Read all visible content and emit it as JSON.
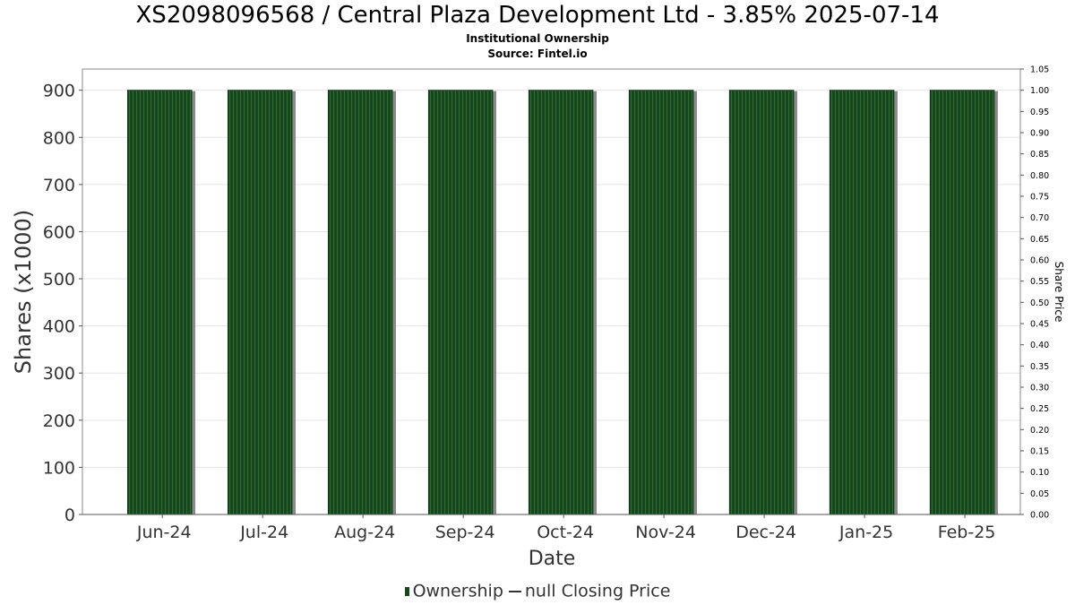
{
  "title": "XS2098096568 / Central Plaza Development Ltd - 3.85% 2025-07-14",
  "subtitle": "Institutional Ownership",
  "source": "Source: Fintel.io",
  "colors": {
    "bar": "#1b4421",
    "bar_stripe": "#2f6b35",
    "bar_shadow": "#8a8a8a",
    "grid": "#e4e4e4",
    "axis": "#888888"
  },
  "legend": {
    "ownership": "Ownership",
    "price": "null Closing Price"
  },
  "chart_data": {
    "type": "bar",
    "title": "XS2098096568 / Central Plaza Development Ltd - 3.85% 2025-07-14",
    "subtitle": "Institutional Ownership",
    "xlabel": "Date",
    "ylabel": "Shares (x1000)",
    "y2label": "Share Price",
    "categories": [
      "Jun-24",
      "Jul-24",
      "Aug-24",
      "Sep-24",
      "Oct-24",
      "Nov-24",
      "Dec-24",
      "Jan-25",
      "Feb-25"
    ],
    "series": [
      {
        "name": "Ownership",
        "values": [
          900,
          900,
          900,
          900,
          900,
          900,
          900,
          900,
          900
        ]
      }
    ],
    "ylim": [
      0,
      945
    ],
    "yticks": [
      0,
      100,
      200,
      300,
      400,
      500,
      600,
      700,
      800,
      900
    ],
    "y2lim": [
      0,
      1.05
    ],
    "y2ticks": [
      "0.00",
      "0.05",
      "0.10",
      "0.15",
      "0.20",
      "0.25",
      "0.30",
      "0.35",
      "0.40",
      "0.45",
      "0.50",
      "0.55",
      "0.60",
      "0.65",
      "0.70",
      "0.75",
      "0.80",
      "0.85",
      "0.90",
      "0.95",
      "1.00",
      "1.05"
    ],
    "grid": true,
    "legend": "bottom-center"
  }
}
